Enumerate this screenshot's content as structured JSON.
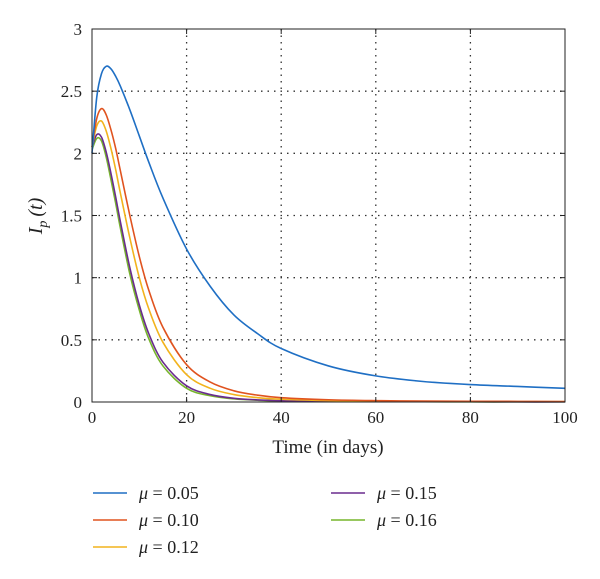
{
  "chart_data": {
    "type": "line",
    "xlabel": "Time (in days)",
    "ylabel": "I_p (t)",
    "ylabel_main": "I",
    "ylabel_sub": "p",
    "ylabel_rest": "(t)",
    "xlim": [
      0,
      100
    ],
    "ylim": [
      0,
      3
    ],
    "xticks": [
      0,
      20,
      40,
      60,
      80,
      100
    ],
    "yticks": [
      0,
      0.5,
      1,
      1.5,
      2,
      2.5,
      3
    ],
    "xtick_labels": [
      "0",
      "20",
      "40",
      "60",
      "80",
      "100"
    ],
    "ytick_labels": [
      "0",
      "0.5",
      "1",
      "1.5",
      "2",
      "2.5",
      "3"
    ],
    "grid": true,
    "legend_position": "bottom",
    "series": [
      {
        "name": "μ = 0.05",
        "legend_symbol": "μ",
        "legend_value": " = 0.05",
        "color": "#1f6fc4",
        "x": [
          0,
          1,
          2,
          3,
          4,
          5,
          6,
          8,
          10,
          12,
          15,
          20,
          25,
          30,
          35,
          40,
          50,
          60,
          70,
          80,
          90,
          100
        ],
        "y": [
          2.0,
          2.45,
          2.64,
          2.7,
          2.68,
          2.62,
          2.54,
          2.35,
          2.14,
          1.93,
          1.64,
          1.23,
          0.93,
          0.7,
          0.55,
          0.43,
          0.29,
          0.21,
          0.165,
          0.14,
          0.125,
          0.11
        ]
      },
      {
        "name": "μ = 0.10",
        "legend_symbol": "μ",
        "legend_value": " = 0.10",
        "color": "#e0531f",
        "x": [
          0,
          1,
          2,
          3,
          4,
          5,
          6,
          8,
          10,
          12,
          15,
          20,
          25,
          30,
          35,
          40,
          50,
          60,
          70,
          80,
          90,
          100
        ],
        "y": [
          2.05,
          2.28,
          2.36,
          2.31,
          2.19,
          2.04,
          1.86,
          1.5,
          1.17,
          0.9,
          0.6,
          0.3,
          0.16,
          0.09,
          0.055,
          0.035,
          0.018,
          0.011,
          0.008,
          0.006,
          0.005,
          0.004
        ]
      },
      {
        "name": "μ = 0.12",
        "legend_symbol": "μ",
        "legend_value": " = 0.12",
        "color": "#f2b31d",
        "x": [
          0,
          1,
          2,
          3,
          4,
          5,
          6,
          8,
          10,
          12,
          15,
          20,
          25,
          30,
          35,
          40,
          50,
          60,
          70,
          80,
          90,
          100
        ],
        "y": [
          2.05,
          2.22,
          2.26,
          2.18,
          2.04,
          1.87,
          1.68,
          1.32,
          1.0,
          0.75,
          0.48,
          0.22,
          0.11,
          0.06,
          0.035,
          0.022,
          0.011,
          0.007,
          0.005,
          0.004,
          0.003,
          0.003
        ]
      },
      {
        "name": "μ = 0.15",
        "legend_symbol": "μ",
        "legend_value": " = 0.15",
        "color": "#6a2c8e",
        "x": [
          0,
          1,
          2,
          3,
          4,
          5,
          6,
          8,
          10,
          12,
          15,
          20,
          25,
          30,
          35,
          40,
          50,
          60,
          70,
          80,
          90,
          100
        ],
        "y": [
          2.05,
          2.15,
          2.13,
          2.01,
          1.84,
          1.65,
          1.45,
          1.08,
          0.78,
          0.55,
          0.32,
          0.13,
          0.06,
          0.03,
          0.017,
          0.01,
          0.005,
          0.003,
          0.002,
          0.002,
          0.001,
          0.001
        ]
      },
      {
        "name": "μ = 0.16",
        "legend_symbol": "μ",
        "legend_value": " = 0.16",
        "color": "#77b52c",
        "x": [
          0,
          1,
          2,
          3,
          4,
          5,
          6,
          8,
          10,
          12,
          15,
          20,
          25,
          30,
          35,
          40,
          50,
          60,
          70,
          80,
          90,
          100
        ],
        "y": [
          2.03,
          2.12,
          2.1,
          1.97,
          1.79,
          1.6,
          1.4,
          1.03,
          0.74,
          0.51,
          0.29,
          0.11,
          0.05,
          0.025,
          0.014,
          0.008,
          0.004,
          0.002,
          0.002,
          0.001,
          0.001,
          0.001
        ]
      }
    ]
  }
}
